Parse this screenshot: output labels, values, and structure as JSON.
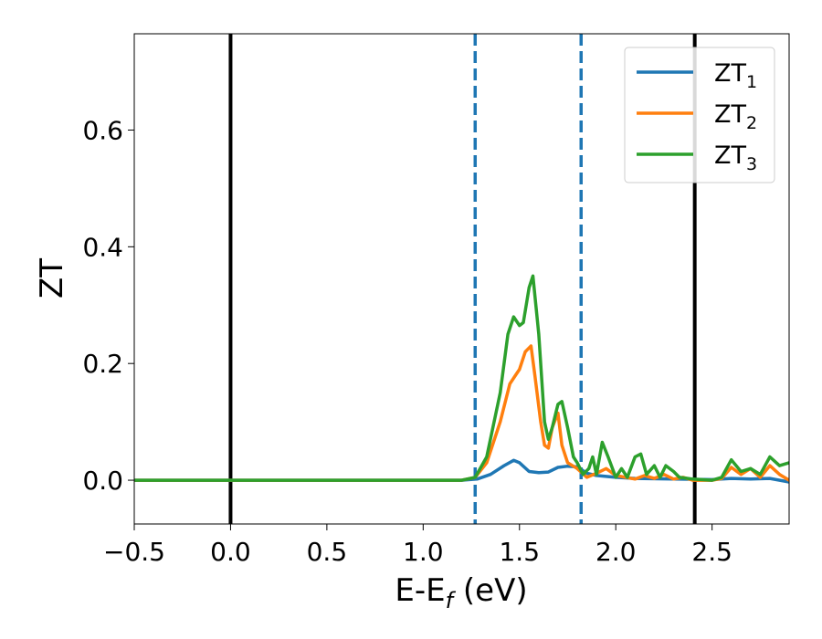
{
  "chart_data": {
    "type": "line",
    "title": "",
    "xlabel": "E-E",
    "xlabel_sub": "f",
    "xlabel_unit": " (eV)",
    "ylabel": "ZT",
    "xlim": [
      -0.5,
      2.9
    ],
    "ylim": [
      -0.075,
      0.765
    ],
    "xticks": [
      -0.5,
      0.0,
      0.5,
      1.0,
      1.5,
      2.0,
      2.5
    ],
    "xtick_labels": [
      "−0.5",
      "0.0",
      "0.5",
      "1.0",
      "1.5",
      "2.0",
      "2.5"
    ],
    "yticks": [
      0.0,
      0.2,
      0.4,
      0.6
    ],
    "ytick_labels": [
      "0.0",
      "0.2",
      "0.4",
      "0.6"
    ],
    "grid": false,
    "legend_position": "top-right",
    "vlines": [
      {
        "x": 0.0,
        "style": "solid",
        "color": "#000000"
      },
      {
        "x": 2.41,
        "style": "solid",
        "color": "#000000"
      },
      {
        "x": 1.27,
        "style": "dashed",
        "color": "#1f77b4"
      },
      {
        "x": 1.82,
        "style": "dashed",
        "color": "#1f77b4"
      }
    ],
    "series": [
      {
        "name": "ZT",
        "sub": "1",
        "color": "#1f77b4",
        "x": [
          -0.5,
          1.2,
          1.28,
          1.35,
          1.42,
          1.47,
          1.5,
          1.55,
          1.6,
          1.65,
          1.7,
          1.75,
          1.8,
          1.85,
          1.9,
          2.0,
          2.1,
          2.3,
          2.5,
          2.6,
          2.7,
          2.8,
          2.9
        ],
        "y": [
          0.0,
          0.0,
          0.002,
          0.01,
          0.025,
          0.034,
          0.03,
          0.015,
          0.013,
          0.014,
          0.022,
          0.024,
          0.023,
          0.012,
          0.008,
          0.005,
          0.003,
          0.002,
          0.001,
          0.003,
          0.002,
          0.003,
          -0.003
        ]
      },
      {
        "name": "ZT",
        "sub": "2",
        "color": "#ff7f0e",
        "x": [
          -0.5,
          1.2,
          1.27,
          1.33,
          1.4,
          1.45,
          1.48,
          1.5,
          1.53,
          1.56,
          1.58,
          1.61,
          1.63,
          1.65,
          1.67,
          1.7,
          1.72,
          1.75,
          1.8,
          1.85,
          1.9,
          1.95,
          2.0,
          2.05,
          2.1,
          2.15,
          2.2,
          2.25,
          2.3,
          2.35,
          2.4,
          2.5,
          2.55,
          2.6,
          2.65,
          2.7,
          2.75,
          2.8,
          2.85,
          2.9
        ],
        "y": [
          0.0,
          0.0,
          0.005,
          0.03,
          0.1,
          0.165,
          0.18,
          0.19,
          0.22,
          0.23,
          0.18,
          0.1,
          0.06,
          0.055,
          0.09,
          0.115,
          0.06,
          0.03,
          0.02,
          0.005,
          0.012,
          0.02,
          0.008,
          0.005,
          0.002,
          0.008,
          0.003,
          0.01,
          0.002,
          0.005,
          0.0,
          0.0,
          0.003,
          0.022,
          0.01,
          0.02,
          0.005,
          0.025,
          0.01,
          0.0
        ]
      },
      {
        "name": "ZT",
        "sub": "3",
        "color": "#2ca02c",
        "x": [
          -0.5,
          1.2,
          1.27,
          1.33,
          1.4,
          1.44,
          1.47,
          1.5,
          1.52,
          1.55,
          1.57,
          1.6,
          1.63,
          1.65,
          1.67,
          1.7,
          1.72,
          1.75,
          1.78,
          1.8,
          1.83,
          1.86,
          1.88,
          1.9,
          1.93,
          1.96,
          2.0,
          2.03,
          2.06,
          2.1,
          2.13,
          2.16,
          2.2,
          2.23,
          2.26,
          2.3,
          2.33,
          2.4,
          2.5,
          2.55,
          2.6,
          2.65,
          2.7,
          2.75,
          2.8,
          2.85,
          2.9
        ],
        "y": [
          0.0,
          0.0,
          0.005,
          0.04,
          0.15,
          0.25,
          0.28,
          0.265,
          0.27,
          0.33,
          0.35,
          0.25,
          0.1,
          0.07,
          0.09,
          0.13,
          0.135,
          0.09,
          0.04,
          0.03,
          0.01,
          0.02,
          0.04,
          0.01,
          0.065,
          0.04,
          0.005,
          0.02,
          0.005,
          0.04,
          0.045,
          0.01,
          0.025,
          0.005,
          0.025,
          0.015,
          0.005,
          0.002,
          0.0,
          0.005,
          0.035,
          0.015,
          0.02,
          0.01,
          0.04,
          0.025,
          0.03
        ]
      }
    ]
  }
}
